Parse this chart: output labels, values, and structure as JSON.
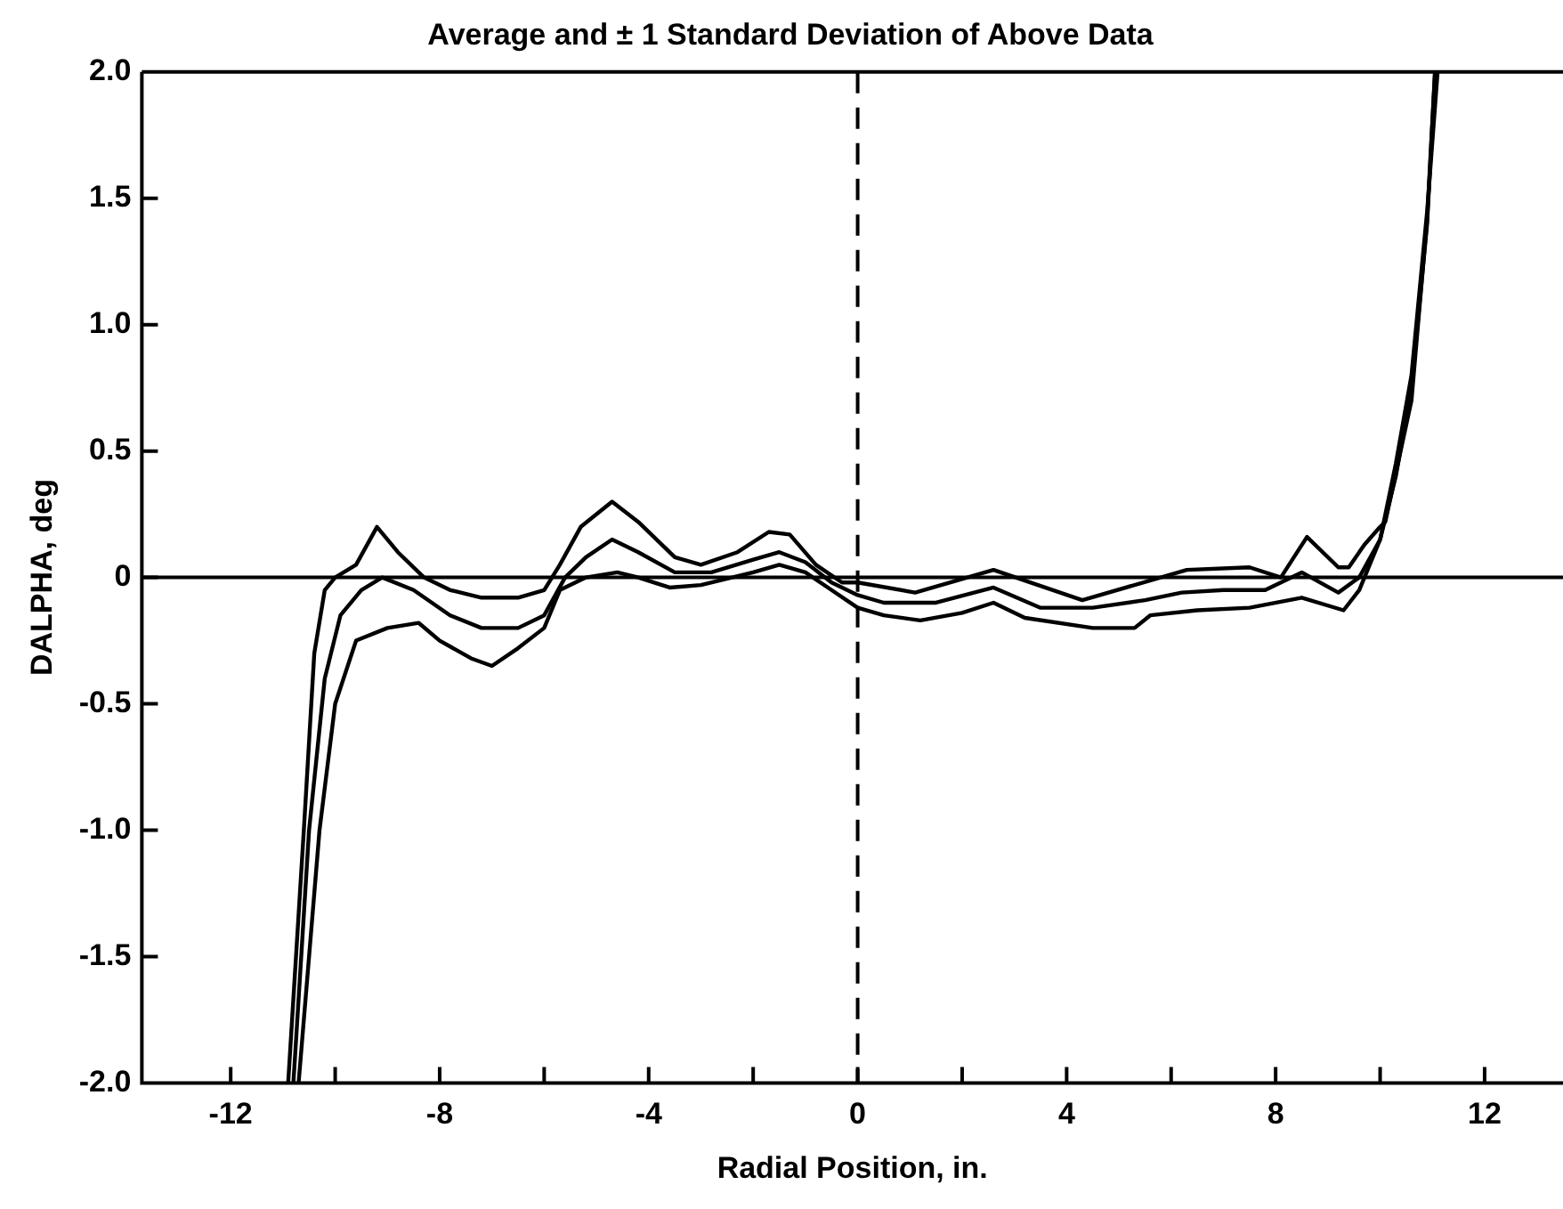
{
  "chart_data": {
    "type": "line",
    "title": "Average and ± 1 Standard Deviation of Above Data",
    "xlabel": "Radial Position, in.",
    "ylabel": "DALPHA, deg",
    "xlim": [
      -13.7,
      13.5
    ],
    "xticks": [
      -12,
      {
        "value": -10,
        "label": null
      },
      -8,
      {
        "value": -6,
        "label": null
      },
      -4,
      {
        "value": -2,
        "label": null
      },
      0,
      {
        "value": 2,
        "label": null
      },
      4,
      {
        "value": 6,
        "label": null
      },
      8,
      {
        "value": 10,
        "label": null
      },
      12
    ],
    "ylim": [
      -2,
      2
    ],
    "yticks": [
      {
        "value": -2,
        "label": "-2.0"
      },
      -1.5,
      {
        "value": -1,
        "label": "-1.0"
      },
      -0.5,
      0,
      0.5,
      {
        "value": 1,
        "label": "1.0"
      },
      1.5,
      {
        "value": 2,
        "label": "2.0"
      }
    ],
    "grid": false,
    "legend": false,
    "marker": "none",
    "line_style": "solid",
    "ref_lines": [
      {
        "axis": "y",
        "value": 0,
        "color": "#000000",
        "line_style": "solid"
      },
      {
        "axis": "x",
        "value": 0,
        "color": "#000000",
        "line_style": "dashed"
      }
    ],
    "series": [
      {
        "color": "#000000",
        "x": [
          -10.9,
          -10.6,
          -10.4,
          -10.2,
          -10.0,
          -9.6,
          -9.2,
          -8.8,
          -8.3,
          -7.8,
          -7.2,
          -6.5,
          -6.0,
          -5.7,
          -5.3,
          -4.7,
          -4.2,
          -3.5,
          -3.0,
          -2.3,
          -1.7,
          -1.3,
          -0.8,
          -0.3,
          0,
          1.1,
          2.6,
          4.3,
          6.3,
          7.5,
          8.1,
          8.6,
          9.2,
          9.4,
          9.7,
          10.0,
          10.1,
          10.6,
          10.9,
          11.05
        ],
        "values": [
          -2.0,
          -1.0,
          -0.3,
          -0.05,
          0.0,
          0.05,
          0.2,
          0.1,
          0.0,
          -0.05,
          -0.08,
          -0.08,
          -0.05,
          0.05,
          0.2,
          0.3,
          0.22,
          0.08,
          0.05,
          0.1,
          0.18,
          0.17,
          0.05,
          -0.02,
          -0.02,
          -0.06,
          0.03,
          -0.09,
          0.03,
          0.04,
          0.0,
          0.16,
          0.04,
          0.04,
          0.13,
          0.2,
          0.22,
          0.7,
          1.42,
          2.0
        ]
      },
      {
        "color": "#000000",
        "x": [
          -10.8,
          -10.5,
          -10.2,
          -9.9,
          -9.5,
          -9.1,
          -8.5,
          -7.8,
          -7.2,
          -6.5,
          -6.0,
          -5.6,
          -5.2,
          -4.7,
          -4.2,
          -3.5,
          -2.8,
          -2.0,
          -1.5,
          -1.0,
          -0.5,
          0,
          0.5,
          1.5,
          2.6,
          3.5,
          4.5,
          5.5,
          6.2,
          7.0,
          7.8,
          8.5,
          9.2,
          9.6,
          10.0,
          10.3,
          10.6,
          10.9,
          11.05
        ],
        "values": [
          -2.0,
          -1.0,
          -0.4,
          -0.15,
          -0.05,
          0.0,
          -0.05,
          -0.15,
          -0.2,
          -0.2,
          -0.15,
          0.0,
          0.08,
          0.15,
          0.1,
          0.02,
          0.02,
          0.07,
          0.1,
          0.06,
          -0.02,
          -0.07,
          -0.1,
          -0.1,
          -0.04,
          -0.12,
          -0.12,
          -0.09,
          -0.06,
          -0.05,
          -0.05,
          0.02,
          -0.06,
          0.0,
          0.15,
          0.4,
          0.75,
          1.4,
          2.0
        ]
      },
      {
        "color": "#000000",
        "x": [
          -10.7,
          -10.3,
          -10.0,
          -9.6,
          -9.0,
          -8.4,
          -8.0,
          -7.4,
          -7.0,
          -6.5,
          -6.0,
          -5.7,
          -5.2,
          -4.6,
          -4.2,
          -3.6,
          -3.0,
          -2.0,
          -1.5,
          -1.0,
          -0.5,
          0,
          0.5,
          1.2,
          2.0,
          2.6,
          3.2,
          4.5,
          5.3,
          5.6,
          6.5,
          7.5,
          8.5,
          9.3,
          9.6,
          10.0,
          10.3,
          10.6,
          10.9,
          11.1
        ],
        "values": [
          -2.0,
          -1.0,
          -0.5,
          -0.25,
          -0.2,
          -0.18,
          -0.25,
          -0.32,
          -0.35,
          -0.28,
          -0.2,
          -0.05,
          0.0,
          0.02,
          0.0,
          -0.04,
          -0.03,
          0.02,
          0.05,
          0.02,
          -0.05,
          -0.12,
          -0.15,
          -0.17,
          -0.14,
          -0.1,
          -0.16,
          -0.2,
          -0.2,
          -0.15,
          -0.13,
          -0.12,
          -0.08,
          -0.13,
          -0.05,
          0.15,
          0.45,
          0.8,
          1.45,
          2.0
        ]
      }
    ]
  }
}
